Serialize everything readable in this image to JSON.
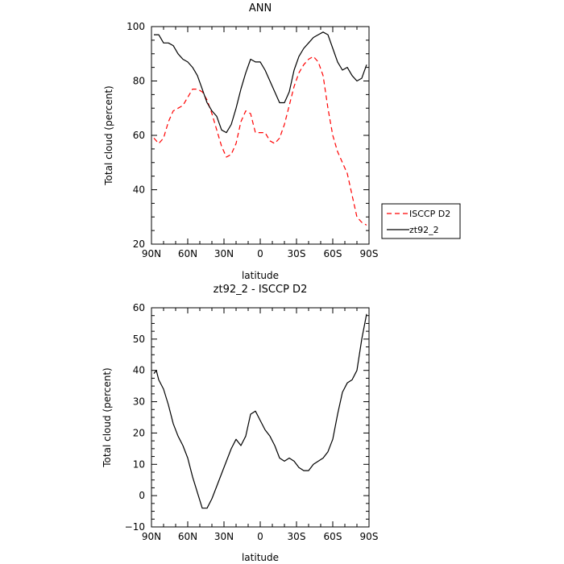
{
  "chart_data": [
    {
      "type": "line",
      "title": "ANN",
      "xlabel": "latitude",
      "ylabel": "Total cloud (percent)",
      "xlim": [
        90,
        -90
      ],
      "ylim": [
        20,
        100
      ],
      "xticks": [
        90,
        60,
        30,
        0,
        -30,
        -60,
        -90
      ],
      "xtick_labels": [
        "90N",
        "60N",
        "30N",
        "0",
        "30S",
        "60S",
        "90S"
      ],
      "yticks": [
        20,
        40,
        60,
        80,
        100
      ],
      "ytick_labels": [
        "20",
        "40",
        "60",
        "80",
        "100"
      ],
      "grid": false,
      "legend_position": "right, outside plot",
      "series": [
        {
          "name": "ISCCP D2",
          "color": "#ff0000",
          "dash": "dashed",
          "x": [
            88,
            84,
            80,
            76,
            72,
            68,
            64,
            60,
            56,
            52,
            48,
            44,
            40,
            36,
            32,
            28,
            24,
            20,
            16,
            12,
            8,
            4,
            0,
            -4,
            -8,
            -12,
            -16,
            -20,
            -24,
            -28,
            -32,
            -36,
            -40,
            -44,
            -48,
            -52,
            -56,
            -60,
            -64,
            -68,
            -72,
            -76,
            -80,
            -84,
            -88
          ],
          "y": [
            59,
            57,
            59,
            65,
            69,
            70,
            71,
            74,
            77,
            77,
            76,
            73,
            68,
            62,
            56,
            52,
            53,
            57,
            65,
            69,
            68,
            61,
            61,
            61,
            58,
            57,
            59,
            64,
            71,
            78,
            83,
            86,
            88,
            89,
            87,
            82,
            70,
            60,
            54,
            50,
            46,
            38,
            30,
            28,
            27
          ]
        },
        {
          "name": "zt92_2",
          "color": "#000000",
          "dash": "solid",
          "x": [
            88,
            84,
            80,
            76,
            72,
            68,
            64,
            60,
            56,
            52,
            48,
            44,
            40,
            36,
            32,
            28,
            24,
            20,
            16,
            12,
            8,
            4,
            0,
            -4,
            -8,
            -12,
            -16,
            -20,
            -24,
            -28,
            -32,
            -36,
            -40,
            -44,
            -48,
            -52,
            -56,
            -60,
            -64,
            -68,
            -72,
            -76,
            -80,
            -84,
            -88
          ],
          "y": [
            97,
            97,
            94,
            94,
            93,
            90,
            88,
            87,
            85,
            82,
            77,
            72,
            69,
            67,
            62,
            61,
            64,
            70,
            77,
            83,
            88,
            87,
            87,
            84,
            80,
            76,
            72,
            72,
            76,
            84,
            89,
            92,
            94,
            96,
            97,
            98,
            97,
            92,
            87,
            84,
            85,
            82,
            80,
            81,
            86
          ]
        }
      ]
    },
    {
      "type": "line",
      "title": "zt92_2 - ISCCP D2",
      "xlabel": "latitude",
      "ylabel": "Total cloud (percent)",
      "xlim": [
        90,
        -90
      ],
      "ylim": [
        -10,
        60
      ],
      "xticks": [
        90,
        60,
        30,
        0,
        -30,
        -60,
        -90
      ],
      "xtick_labels": [
        "90N",
        "60N",
        "30N",
        "0",
        "30S",
        "60S",
        "90S"
      ],
      "yticks": [
        -10,
        0,
        10,
        20,
        30,
        40,
        50,
        60
      ],
      "ytick_labels": [
        "−10",
        "0",
        "10",
        "20",
        "30",
        "40",
        "50",
        "60"
      ],
      "grid": false,
      "series": [
        {
          "color": "#000000",
          "dash": "solid",
          "x": [
            88,
            86,
            84,
            80,
            76,
            72,
            68,
            64,
            60,
            56,
            52,
            48,
            44,
            40,
            36,
            32,
            28,
            24,
            20,
            16,
            12,
            8,
            4,
            0,
            -4,
            -8,
            -12,
            -16,
            -20,
            -24,
            -28,
            -32,
            -36,
            -40,
            -44,
            -48,
            -52,
            -56,
            -60,
            -64,
            -68,
            -72,
            -76,
            -80,
            -84,
            -88
          ],
          "y": [
            39,
            40,
            37,
            34,
            29,
            23,
            19,
            16,
            12,
            6,
            1,
            -4,
            -4,
            -1,
            3,
            7,
            11,
            15,
            18,
            16,
            19,
            26,
            27,
            24,
            21,
            19,
            16,
            12,
            11,
            12,
            11,
            9,
            8,
            8,
            10,
            11,
            12,
            14,
            18,
            26,
            33,
            36,
            37,
            40,
            50,
            58
          ]
        }
      ]
    }
  ]
}
